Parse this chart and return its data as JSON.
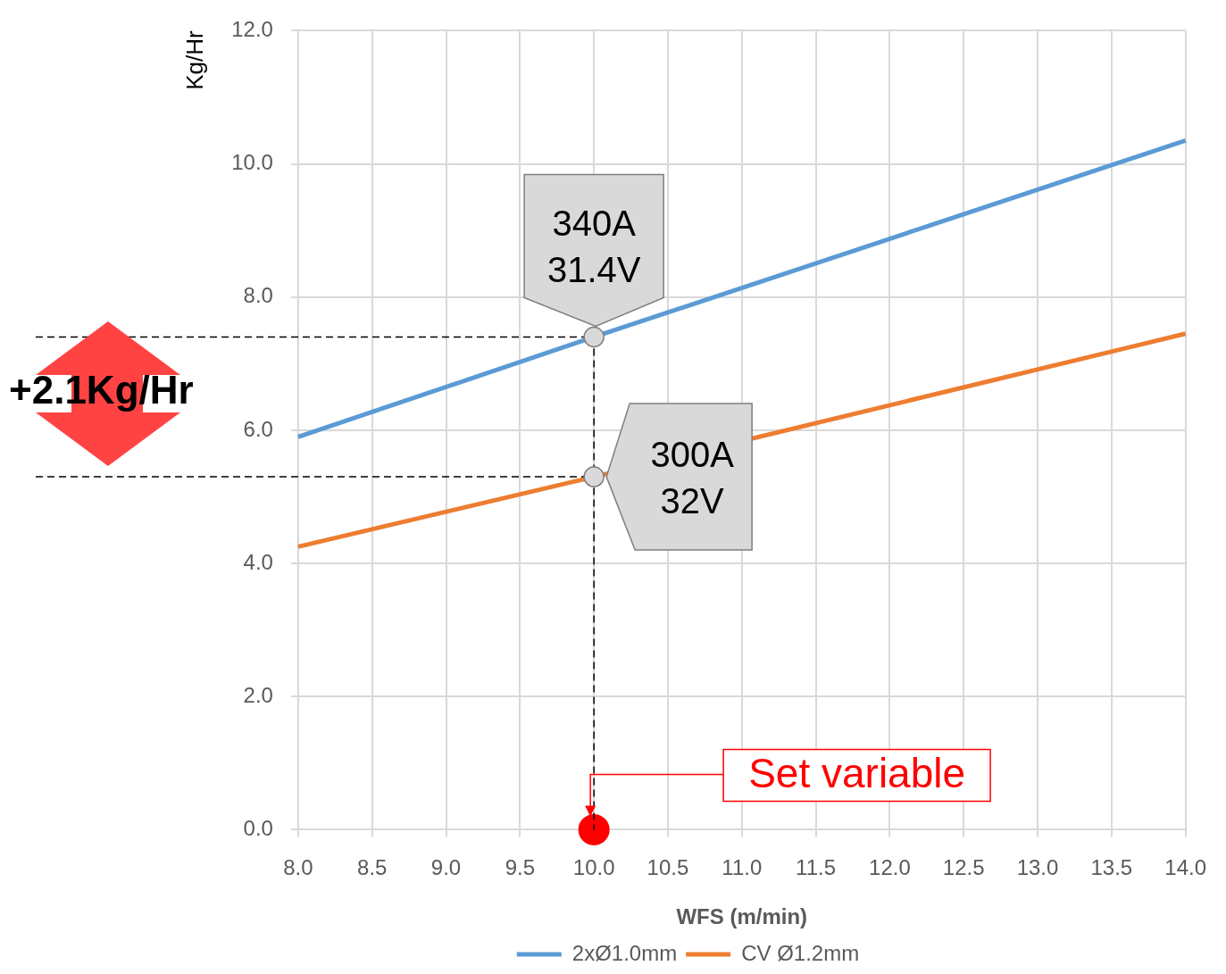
{
  "chart_data": {
    "type": "line",
    "xlabel": "WFS (m/min)",
    "ylabel": "Kg/Hr",
    "x": [
      8,
      10,
      14
    ],
    "series": [
      {
        "name": "2xØ1.0mm",
        "color": "#5b9bd5",
        "values": [
          5.9,
          7.4,
          10.35
        ]
      },
      {
        "name": "CV Ø1.2mm",
        "color": "#ed7d31",
        "values": [
          4.25,
          5.3,
          7.45
        ]
      },
      {
        "type": "scatter",
        "x": [
          10
        ],
        "color": "#ff0000",
        "values": [
          0
        ],
        "marker": "circle"
      }
    ],
    "xlim": [
      8,
      14
    ],
    "xticks": [
      {
        "value": 8,
        "label": "8.0"
      },
      {
        "value": 8.5,
        "label": "8.5"
      },
      {
        "value": 9,
        "label": "9.0"
      },
      {
        "value": 9.5,
        "label": "9.5"
      },
      {
        "value": 10,
        "label": "10.0"
      },
      {
        "value": 10.5,
        "label": "10.5"
      },
      {
        "value": 11,
        "label": "11.0"
      },
      {
        "value": 11.5,
        "label": "11.5"
      },
      {
        "value": 12,
        "label": "12.0"
      },
      {
        "value": 12.5,
        "label": "12.5"
      },
      {
        "value": 13,
        "label": "13.0"
      },
      {
        "value": 13.5,
        "label": "13.5"
      },
      {
        "value": 14,
        "label": "14.0"
      }
    ],
    "ylim": [
      0,
      12
    ],
    "yticks": [
      {
        "value": 0,
        "label": "0.0"
      },
      {
        "value": 2,
        "label": "2.0"
      },
      {
        "value": 4,
        "label": "4.0"
      },
      {
        "value": 6,
        "label": "6.0"
      },
      {
        "value": 8,
        "label": "8.0"
      },
      {
        "value": 10,
        "label": "10.0"
      },
      {
        "value": 12,
        "label": "12.0"
      }
    ],
    "ref_lines": [
      {
        "axis": "y",
        "value": 7.4,
        "line_style": "dashed",
        "color": "#000000"
      },
      {
        "axis": "y",
        "value": 5.3,
        "line_style": "dashed",
        "color": "#000000"
      },
      {
        "axis": "x",
        "value": 10,
        "line_style": "dashed",
        "color": "#000000"
      }
    ],
    "annotations": [
      {
        "text": "340A\n31.4V",
        "x": 10,
        "y": 7.4
      },
      {
        "text": "300A\n32V",
        "x": 10,
        "y": 5.3
      },
      "Set variable",
      "+2.1Kg/Hr"
    ],
    "grid": true,
    "legend": "bottom",
    "marker": "none",
    "line_style": "solid"
  }
}
